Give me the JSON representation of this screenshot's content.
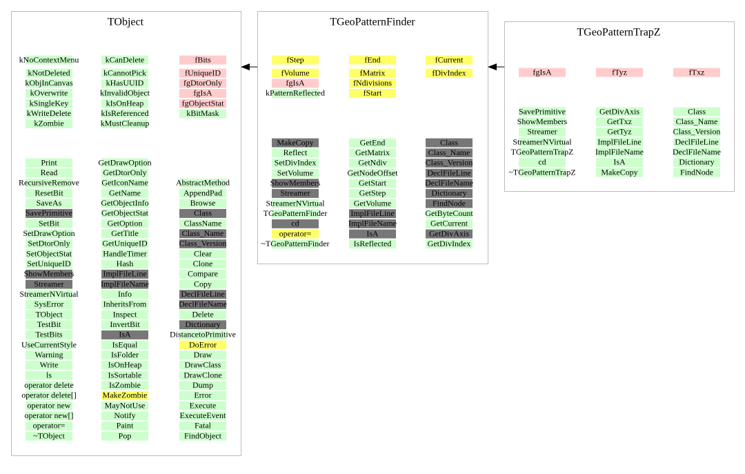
{
  "boxes": [
    {
      "title": "TObject",
      "members": [
        {
          "color": "#ccffcc",
          "items": [
            "kNoContextMenu",
            "kNotDeleted",
            "kObjInCanvas",
            "kOverwrite",
            "kSingleKey",
            "kWriteDelete",
            "kZombie"
          ]
        },
        {
          "color": "#ccffcc",
          "items": [
            "kCanDelete",
            "kCannotPick",
            "kHasUUID",
            "kInvalidObject",
            "kIsOnHeap",
            "kIsReferenced",
            "kMustCleanup"
          ]
        },
        {
          "color": "#ffcccc",
          "items": [
            "fBits",
            "fUniqueID",
            "fgDtorOnly",
            "fgIsA",
            "fgObjectStat",
            {
              "label": "kBitMask",
              "color": "#ccffcc"
            }
          ]
        }
      ],
      "methods": [
        {
          "color": "#ccffcc",
          "items": [
            "Print",
            "Read",
            "RecursiveRemove",
            "ResetBit",
            "SaveAs",
            {
              "label": "SavePrimitive",
              "color": "#777777"
            },
            "SetBit",
            "SetDrawOption",
            "SetDtorOnly",
            "SetObjectStat",
            "SetUniqueID",
            {
              "label": "ShowMembers",
              "color": "#777777"
            },
            {
              "label": "Streamer",
              "color": "#777777"
            },
            "StreamerNVirtual",
            "SysError",
            "TObject",
            "TestBit",
            "TestBits",
            "UseCurrentStyle",
            "Warning",
            "Write",
            "ls",
            "operator delete",
            "operator delete[]",
            "operator new",
            "operator new[]",
            "operator=",
            "~TObject"
          ]
        },
        {
          "color": "#ccffcc",
          "items": [
            "GetDrawOption",
            "GetDtorOnly",
            "GetIconName",
            "GetName",
            "GetObjectInfo",
            "GetObjectStat",
            "GetOption",
            "GetTitle",
            "GetUniqueID",
            "HandleTimer",
            "Hash",
            {
              "label": "ImplFileLine",
              "color": "#777777"
            },
            {
              "label": "ImplFileName",
              "color": "#777777"
            },
            "Info",
            "InheritsFrom",
            "Inspect",
            "InvertBit",
            {
              "label": "IsA",
              "color": "#777777"
            },
            "IsEqual",
            "IsFolder",
            "IsOnHeap",
            "IsSortable",
            "IsZombie",
            {
              "label": "MakeZombie",
              "color": "#ffff66"
            },
            "MayNotUse",
            "Notify",
            "Paint",
            "Pop"
          ]
        },
        {
          "color": "#ccffcc",
          "items": [
            "AbstractMethod",
            "AppendPad",
            "Browse",
            {
              "label": "Class",
              "color": "#777777"
            },
            "ClassName",
            {
              "label": "Class_Name",
              "color": "#777777"
            },
            {
              "label": "Class_Version",
              "color": "#777777"
            },
            "Clear",
            "Clone",
            "Compare",
            "Copy",
            {
              "label": "DeclFileLine",
              "color": "#777777"
            },
            {
              "label": "DeclFileName",
              "color": "#777777"
            },
            "Delete",
            {
              "label": "Dictionary",
              "color": "#777777"
            },
            "DistancetoPrimitive",
            {
              "label": "DoError",
              "color": "#ffff66"
            },
            "Draw",
            "DrawClass",
            "DrawClone",
            "Dump",
            "Error",
            "Execute",
            "ExecuteEvent",
            "Fatal",
            "FindObject"
          ]
        }
      ]
    },
    {
      "title": "TGeoPatternFinder",
      "members": [
        {
          "color": "#ffff66",
          "items": [
            "fStep",
            "fVolume",
            {
              "label": "fgIsA",
              "color": "#ffcccc"
            },
            {
              "label": "kPatternReflected",
              "color": "#ccffcc"
            }
          ]
        },
        {
          "color": "#ffff66",
          "items": [
            "fEnd",
            "fMatrix",
            "fNdivisions",
            "fStart"
          ]
        },
        {
          "color": "#ffff66",
          "items": [
            "fCurrent",
            "fDivIndex"
          ]
        }
      ],
      "methods": [
        {
          "color": "#ccffcc",
          "items": [
            {
              "label": "MakeCopy",
              "color": "#777777"
            },
            "Reflect",
            "SetDivIndex",
            "SetVolume",
            {
              "label": "ShowMembers",
              "color": "#777777"
            },
            {
              "label": "Streamer",
              "color": "#777777"
            },
            "StreamerNVirtual",
            "TGeoPatternFinder",
            {
              "label": "cd",
              "color": "#777777"
            },
            {
              "label": "operator=",
              "color": "#ffff66"
            },
            "~TGeoPatternFinder"
          ]
        },
        {
          "color": "#ccffcc",
          "items": [
            "GetEnd",
            "GetMatrix",
            "GetNdiv",
            "GetNodeOffset",
            "GetStart",
            "GetStep",
            "GetVolume",
            {
              "label": "ImplFileLine",
              "color": "#777777"
            },
            {
              "label": "ImplFileName",
              "color": "#777777"
            },
            {
              "label": "IsA",
              "color": "#777777"
            },
            "IsReflected"
          ]
        },
        {
          "color": "#777777",
          "items": [
            "Class",
            "Class_Name",
            "Class_Version",
            "DeclFileLine",
            "DeclFileName",
            "Dictionary",
            "FindNode",
            {
              "label": "GetByteCount",
              "color": "#ccffcc"
            },
            {
              "label": "GetCurrent",
              "color": "#ccffcc"
            },
            "GetDivAxis",
            {
              "label": "GetDivIndex",
              "color": "#ccffcc"
            }
          ]
        }
      ]
    },
    {
      "title": "TGeoPatternTrapZ",
      "members": [
        {
          "color": "#ffcccc",
          "items": [
            "fgIsA"
          ]
        },
        {
          "color": "#ffcccc",
          "items": [
            "fTyz"
          ]
        },
        {
          "color": "#ffcccc",
          "items": [
            "fTxz"
          ]
        }
      ],
      "methods": [
        {
          "color": "#ccffcc",
          "items": [
            "SavePrimitive",
            "ShowMembers",
            "Streamer",
            "StreamerNVirtual",
            "TGeoPatternTrapZ",
            "cd",
            "~TGeoPatternTrapZ"
          ]
        },
        {
          "color": "#ccffcc",
          "items": [
            "GetDivAxis",
            "GetTxz",
            "GetTyz",
            "ImplFileLine",
            "ImplFileName",
            "IsA",
            "MakeCopy"
          ]
        },
        {
          "color": "#ccffcc",
          "items": [
            "Class",
            "Class_Name",
            "Class_Version",
            "DeclFileLine",
            "DeclFileName",
            "Dictionary",
            "FindNode"
          ]
        }
      ]
    }
  ]
}
